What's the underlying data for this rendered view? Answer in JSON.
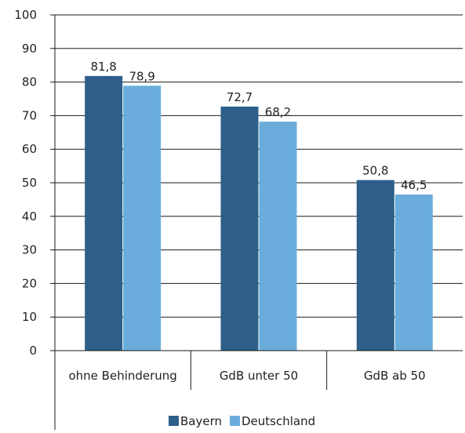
{
  "chart_data": {
    "type": "bar",
    "categories": [
      "ohne Behinderung",
      "GdB unter 50",
      "GdB ab 50"
    ],
    "series": [
      {
        "name": "Bayern",
        "values": [
          81.8,
          72.7,
          50.8
        ],
        "labels": [
          "81,8",
          "72,7",
          "50,8"
        ],
        "color": "#2e5f8a"
      },
      {
        "name": "Deutschland",
        "values": [
          78.9,
          68.2,
          46.5
        ],
        "labels": [
          "78,9",
          "68,2",
          "46,5"
        ],
        "color": "#6aaddc"
      }
    ],
    "yticks": [
      "0",
      "10",
      "20",
      "30",
      "40",
      "50",
      "60",
      "70",
      "80",
      "90",
      "100"
    ],
    "ylim": [
      0,
      100
    ],
    "grid": true,
    "legend": "bottom"
  }
}
